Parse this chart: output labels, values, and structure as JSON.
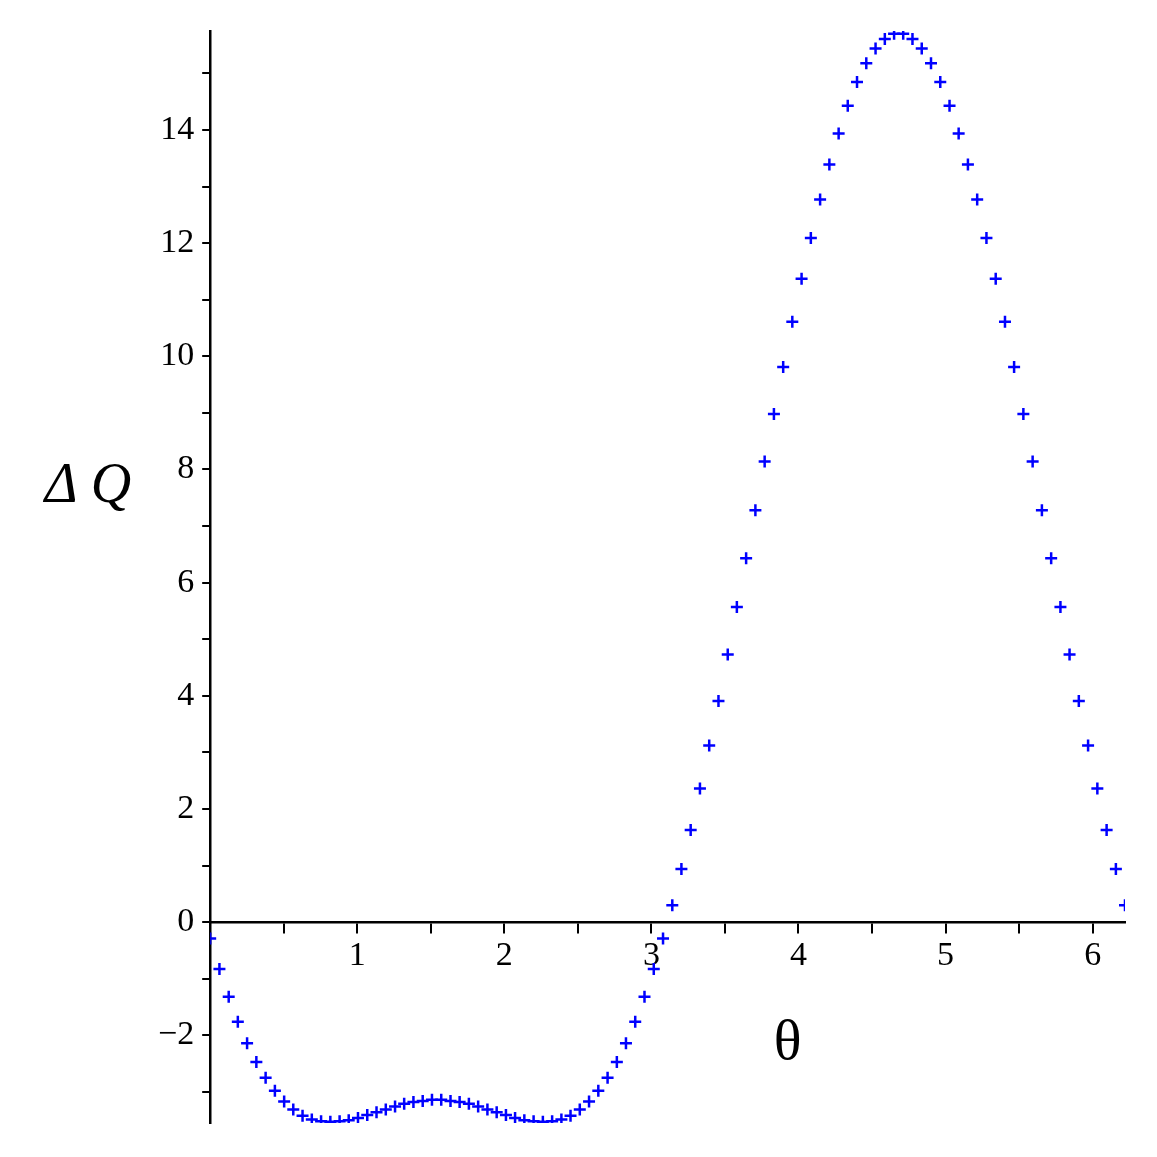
{
  "chart_data": {
    "type": "scatter",
    "xlabel": "θ",
    "ylabel": "Δ Q",
    "marker": "cross",
    "grid": false,
    "legend": false,
    "xlim": [
      0,
      6.22
    ],
    "ylim": [
      -3.55,
      15.75
    ],
    "xticks": [
      {
        "value": 0.5,
        "label": null
      },
      1,
      {
        "value": 1.5,
        "label": null
      },
      2,
      {
        "value": 2.5,
        "label": null
      },
      3,
      {
        "value": 3.5,
        "label": null
      },
      4,
      {
        "value": 4.5,
        "label": null
      },
      5,
      {
        "value": 5.5,
        "label": null
      },
      6
    ],
    "yticks": [
      {
        "value": -3,
        "label": null
      },
      -2,
      {
        "value": -1,
        "label": null
      },
      0,
      {
        "value": 1,
        "label": null
      },
      2,
      {
        "value": 3,
        "label": null
      },
      4,
      {
        "value": 5,
        "label": null
      },
      6,
      {
        "value": 7,
        "label": null
      },
      8,
      {
        "value": 9,
        "label": null
      },
      10,
      {
        "value": 11,
        "label": null
      },
      12,
      {
        "value": 13,
        "label": null
      },
      14,
      {
        "value": 15,
        "label": null
      }
    ],
    "series": [
      {
        "color": "#0000ff",
        "x": [
          0,
          0.063,
          0.126,
          0.188,
          0.251,
          0.314,
          0.377,
          0.44,
          0.503,
          0.565,
          0.628,
          0.691,
          0.754,
          0.817,
          0.88,
          0.942,
          1.005,
          1.068,
          1.131,
          1.194,
          1.257,
          1.319,
          1.382,
          1.445,
          1.508,
          1.571,
          1.634,
          1.696,
          1.759,
          1.822,
          1.885,
          1.948,
          2.011,
          2.073,
          2.136,
          2.199,
          2.262,
          2.325,
          2.388,
          2.45,
          2.513,
          2.576,
          2.639,
          2.702,
          2.765,
          2.827,
          2.89,
          2.953,
          3.016,
          3.079,
          3.142,
          3.204,
          3.267,
          3.33,
          3.393,
          3.456,
          3.519,
          3.581,
          3.644,
          3.707,
          3.77,
          3.833,
          3.896,
          3.958,
          4.021,
          4.084,
          4.147,
          4.21,
          4.273,
          4.335,
          4.398,
          4.461,
          4.524,
          4.587,
          4.65,
          4.712,
          4.775,
          4.838,
          4.901,
          4.964,
          5.027,
          5.089,
          5.152,
          5.215,
          5.278,
          5.341,
          5.404,
          5.466,
          5.529,
          5.592,
          5.655,
          5.718,
          5.781,
          5.843,
          5.906,
          5.969,
          6.032,
          6.095,
          6.158,
          6.22
        ],
        "values": [
          -0.29,
          -0.83,
          -1.32,
          -1.76,
          -2.14,
          -2.47,
          -2.75,
          -2.98,
          -3.17,
          -3.31,
          -3.42,
          -3.49,
          -3.52,
          -3.53,
          -3.52,
          -3.5,
          -3.46,
          -3.41,
          -3.36,
          -3.31,
          -3.26,
          -3.21,
          -3.18,
          -3.16,
          -3.14,
          -3.14,
          -3.16,
          -3.18,
          -3.21,
          -3.26,
          -3.31,
          -3.36,
          -3.41,
          -3.46,
          -3.5,
          -3.52,
          -3.53,
          -3.52,
          -3.49,
          -3.42,
          -3.31,
          -3.17,
          -2.98,
          -2.75,
          -2.47,
          -2.14,
          -1.76,
          -1.32,
          -0.83,
          -0.29,
          0.3,
          0.94,
          1.63,
          2.36,
          3.12,
          3.91,
          4.73,
          5.57,
          6.43,
          7.28,
          8.14,
          8.98,
          9.81,
          10.61,
          11.37,
          12.09,
          12.77,
          13.39,
          13.94,
          14.43,
          14.85,
          15.18,
          15.44,
          15.61,
          15.7,
          15.7,
          15.61,
          15.44,
          15.18,
          14.85,
          14.43,
          13.94,
          13.39,
          12.77,
          12.09,
          11.37,
          10.61,
          9.81,
          8.98,
          8.14,
          7.28,
          6.43,
          5.57,
          4.73,
          3.91,
          3.12,
          2.36,
          1.63,
          0.94,
          0.3
        ]
      }
    ]
  }
}
